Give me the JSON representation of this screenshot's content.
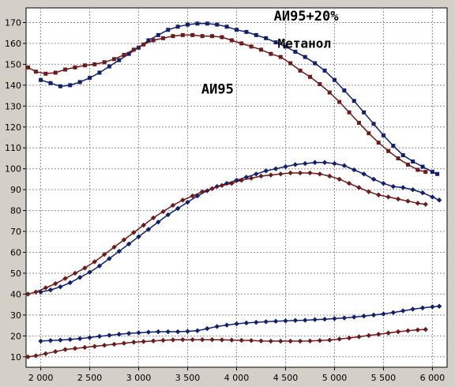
{
  "chart_data": {
    "type": "line",
    "title": "",
    "xlabel": "",
    "ylabel": "",
    "xlim": [
      1850,
      6150
    ],
    "ylim": [
      5,
      177
    ],
    "x_ticks": [
      2000,
      2500,
      3000,
      3500,
      4000,
      4500,
      5000,
      5500,
      6000
    ],
    "x_tick_labels": [
      "2 000",
      "2 500",
      "3 000",
      "3 500",
      "4 000",
      "4 500",
      "5 000",
      "5 500",
      "6 000"
    ],
    "y_ticks": [
      10,
      20,
      30,
      40,
      50,
      60,
      70,
      80,
      90,
      100,
      110,
      120,
      130,
      140,
      150,
      160,
      170
    ],
    "y_tick_labels": [
      "10",
      "20",
      "30",
      "40",
      "50",
      "60",
      "70",
      "80",
      "90",
      "100",
      "110",
      "120",
      "130",
      "140",
      "150",
      "160",
      "170"
    ],
    "grid": true,
    "annotations": [
      {
        "text": "АИ95+20%",
        "x": 4380,
        "y": 171,
        "size": 17
      },
      {
        "text": "Метанол",
        "x": 4420,
        "y": 158,
        "size": 16
      },
      {
        "text": "АИ95",
        "x": 3640,
        "y": 136,
        "size": 17
      }
    ],
    "series": [
      {
        "color": "#10206e",
        "marker": "square",
        "x": [
          2000,
          2100,
          2200,
          2300,
          2400,
          2500,
          2600,
          2700,
          2800,
          2900,
          3000,
          3100,
          3200,
          3300,
          3400,
          3500,
          3600,
          3700,
          3800,
          3900,
          4000,
          4100,
          4200,
          4300,
          4400,
          4500,
          4600,
          4700,
          4800,
          4900,
          5000,
          5100,
          5200,
          5300,
          5400,
          5500,
          5600,
          5700,
          5800,
          5900,
          6000,
          6050
        ],
        "y": [
          142.5,
          141,
          139.5,
          140,
          141.5,
          143.5,
          146,
          149,
          152,
          155,
          158,
          161.5,
          164,
          166.5,
          168,
          169,
          169.5,
          169.5,
          169,
          168,
          166.5,
          165.5,
          164,
          162.5,
          160.5,
          158.5,
          156,
          153.5,
          150.5,
          147,
          142.5,
          137.5,
          132.5,
          127,
          121.5,
          116,
          111,
          106.5,
          103.5,
          101,
          98.5,
          97.5
        ]
      },
      {
        "color": "#6e1a1a",
        "marker": "square",
        "x": [
          1870,
          1950,
          2050,
          2150,
          2250,
          2350,
          2450,
          2550,
          2650,
          2750,
          2850,
          2950,
          3050,
          3150,
          3250,
          3350,
          3450,
          3550,
          3650,
          3750,
          3850,
          3950,
          4050,
          4150,
          4250,
          4350,
          4450,
          4550,
          4650,
          4750,
          4850,
          4950,
          5050,
          5150,
          5250,
          5350,
          5450,
          5550,
          5650,
          5750,
          5850,
          5930
        ],
        "y": [
          148.5,
          146.5,
          145.5,
          146,
          147.5,
          148.5,
          149.5,
          150,
          151,
          152.5,
          154.5,
          157,
          159.5,
          161.5,
          162.5,
          163.5,
          164,
          164,
          163.5,
          163.5,
          163,
          161.5,
          160,
          158.5,
          157,
          155,
          153.5,
          150.5,
          147,
          144,
          140.5,
          136.5,
          132,
          127,
          122,
          117,
          112.5,
          108.5,
          105,
          102,
          99.5,
          98.5
        ]
      },
      {
        "color": "#10206e",
        "marker": "diamond",
        "x": [
          2000,
          2100,
          2200,
          2300,
          2400,
          2500,
          2600,
          2700,
          2800,
          2900,
          3000,
          3100,
          3200,
          3300,
          3400,
          3500,
          3600,
          3700,
          3800,
          3900,
          4000,
          4100,
          4200,
          4300,
          4400,
          4500,
          4600,
          4700,
          4800,
          4900,
          5000,
          5100,
          5200,
          5300,
          5400,
          5500,
          5600,
          5700,
          5800,
          5900,
          6000,
          6070
        ],
        "y": [
          41,
          42,
          43.5,
          45.5,
          48,
          50.5,
          53.5,
          57,
          60.5,
          64,
          67.5,
          71,
          74.5,
          78,
          81,
          84,
          87,
          89.5,
          91.5,
          93,
          94.5,
          96,
          97.5,
          99,
          100,
          101,
          102,
          102.5,
          103,
          103,
          102.5,
          101.5,
          99.5,
          97.5,
          95,
          93,
          91.5,
          91,
          90,
          88.5,
          86.5,
          85
        ]
      },
      {
        "color": "#6e1a1a",
        "marker": "diamond",
        "x": [
          1870,
          1950,
          2050,
          2150,
          2250,
          2350,
          2450,
          2550,
          2650,
          2750,
          2850,
          2950,
          3050,
          3150,
          3250,
          3350,
          3450,
          3550,
          3650,
          3750,
          3850,
          3950,
          4050,
          4150,
          4250,
          4350,
          4450,
          4550,
          4650,
          4750,
          4850,
          4950,
          5050,
          5150,
          5250,
          5350,
          5450,
          5550,
          5650,
          5750,
          5850,
          5930
        ],
        "y": [
          40,
          41,
          43,
          45,
          47.5,
          50,
          52.5,
          55.5,
          59,
          62.5,
          66,
          69.5,
          73,
          76.5,
          79.5,
          82.5,
          85,
          87,
          89,
          90.5,
          92,
          93,
          94.5,
          95.5,
          96.5,
          97,
          97.5,
          98,
          98,
          98,
          97.5,
          96.5,
          95,
          93,
          91,
          89,
          87.5,
          86.5,
          85.5,
          84.5,
          83.5,
          83
        ]
      },
      {
        "color": "#10206e",
        "marker": "diamond",
        "x": [
          2000,
          2100,
          2200,
          2300,
          2400,
          2500,
          2600,
          2700,
          2800,
          2900,
          3000,
          3100,
          3200,
          3300,
          3400,
          3500,
          3600,
          3700,
          3800,
          3900,
          4000,
          4100,
          4200,
          4300,
          4400,
          4500,
          4600,
          4700,
          4800,
          4900,
          5000,
          5100,
          5200,
          5300,
          5400,
          5500,
          5600,
          5700,
          5800,
          5900,
          6000,
          6070
        ],
        "y": [
          17.5,
          17.8,
          18,
          18.3,
          18.7,
          19.2,
          19.8,
          20.3,
          20.8,
          21.2,
          21.5,
          21.8,
          22,
          22,
          22,
          22.2,
          22.5,
          23.5,
          24.5,
          25.2,
          25.8,
          26.2,
          26.5,
          26.8,
          27,
          27.2,
          27.4,
          27.5,
          27.8,
          28,
          28.3,
          28.6,
          29,
          29.5,
          30,
          30.5,
          31.2,
          32,
          32.8,
          33.4,
          33.9,
          34.2
        ]
      },
      {
        "color": "#6e1a1a",
        "marker": "diamond",
        "x": [
          1870,
          1950,
          2050,
          2150,
          2250,
          2350,
          2450,
          2550,
          2650,
          2750,
          2850,
          2950,
          3050,
          3150,
          3250,
          3350,
          3450,
          3550,
          3650,
          3750,
          3850,
          3950,
          4050,
          4150,
          4250,
          4350,
          4450,
          4550,
          4650,
          4750,
          4850,
          4950,
          5050,
          5150,
          5250,
          5350,
          5450,
          5550,
          5650,
          5750,
          5850,
          5930
        ],
        "y": [
          10,
          10.5,
          11.5,
          12.5,
          13.5,
          14,
          14.5,
          15,
          15.5,
          16,
          16.5,
          17,
          17.3,
          17.6,
          17.9,
          18.1,
          18.2,
          18.2,
          18.2,
          18.2,
          18.1,
          18,
          17.9,
          17.8,
          17.6,
          17.5,
          17.5,
          17.5,
          17.5,
          17.6,
          17.8,
          18,
          18.5,
          19,
          19.6,
          20.2,
          20.8,
          21.4,
          22,
          22.5,
          22.9,
          23.1
        ]
      }
    ]
  }
}
